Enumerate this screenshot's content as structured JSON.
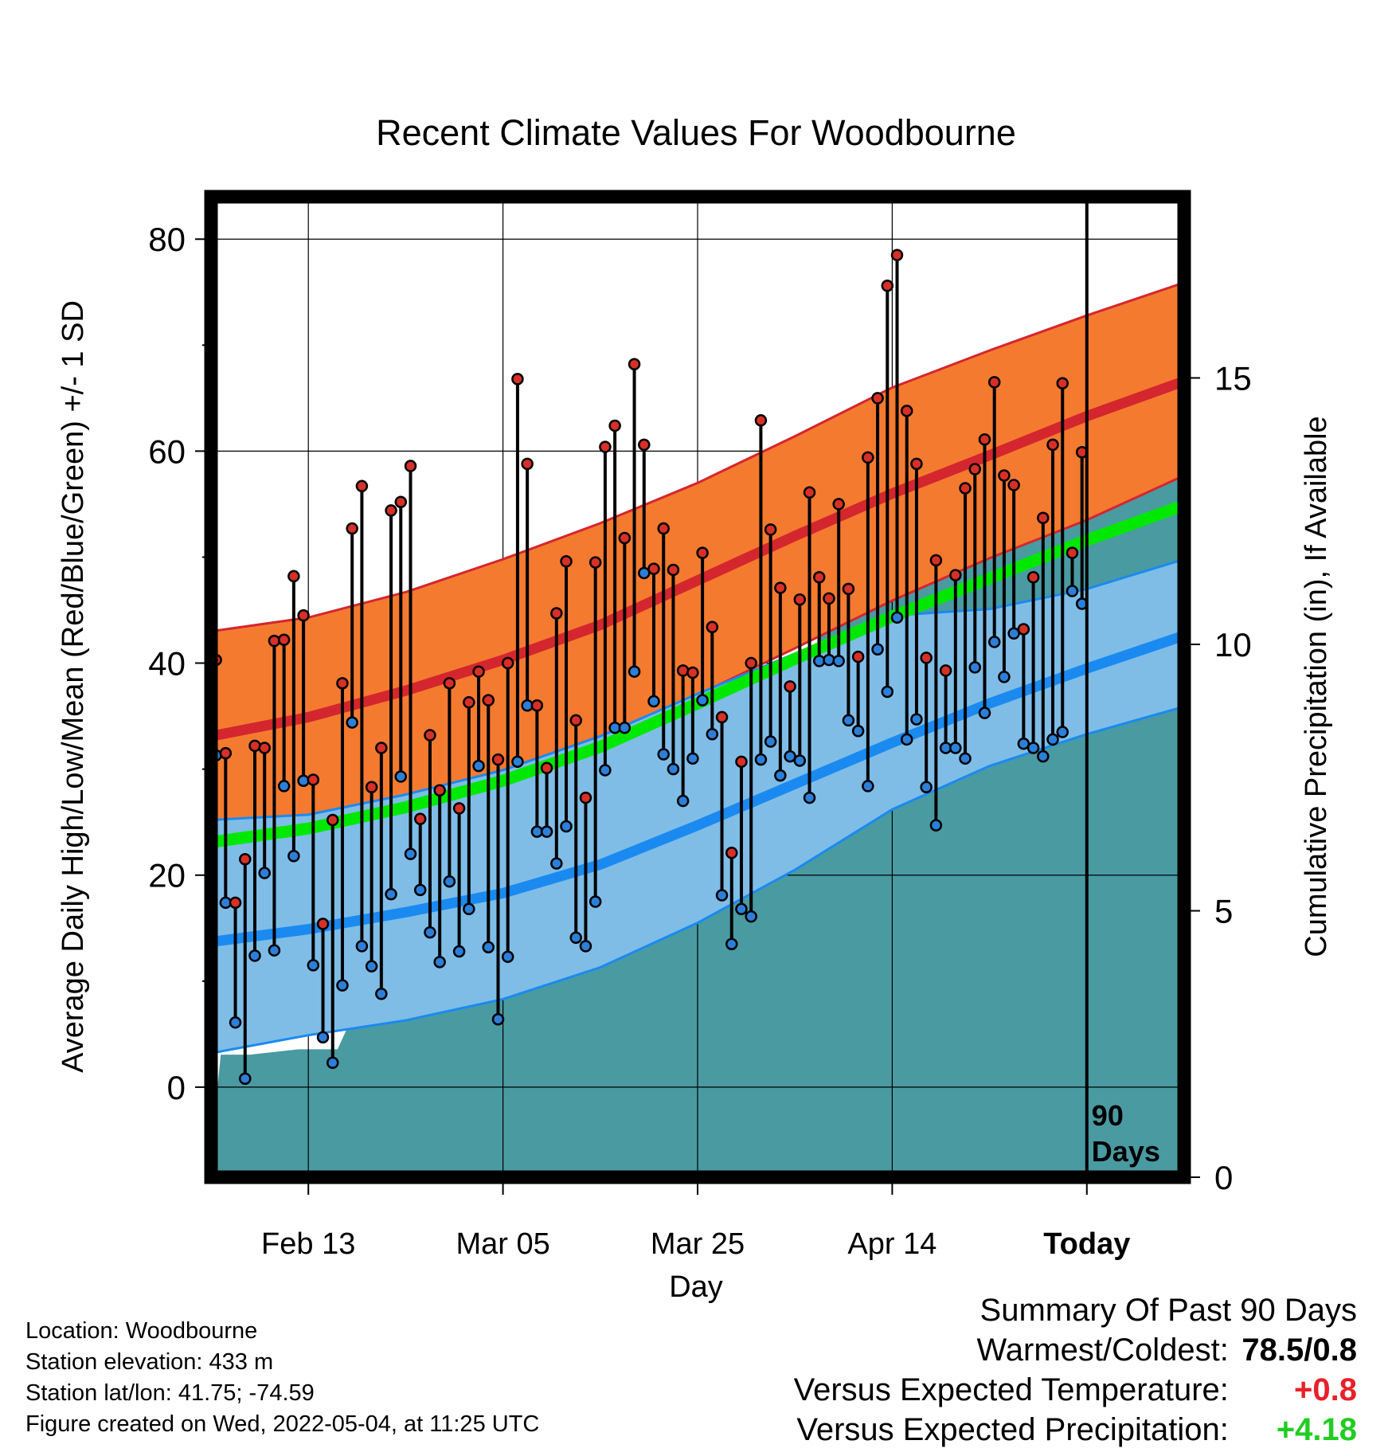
{
  "chart_data": {
    "type": "line",
    "title": "Recent Climate Values For Woodbourne",
    "xlabel": "Day",
    "ylabel": "Average Daily High/Low/Mean (Red/Blue/Green) +/- 1 SD",
    "y2label": "Cumulative Precipitation (in), If Available",
    "ylim": [
      -8.5,
      84
    ],
    "y2lim": [
      0,
      18.4
    ],
    "yticks": [
      "0",
      "20",
      "40",
      "60",
      "80"
    ],
    "y2ticks": [
      "0",
      "5",
      "10",
      "15"
    ],
    "x_day_range": [
      0,
      100
    ],
    "xticks": [
      {
        "day": 10,
        "label": "Feb 13"
      },
      {
        "day": 30,
        "label": "Mar 05"
      },
      {
        "day": 50,
        "label": "Mar 25"
      },
      {
        "day": 70,
        "label": "Apr 14"
      },
      {
        "day": 90,
        "label": "Today"
      }
    ],
    "today_line_label": "90 Days",
    "grid": true,
    "normal_high": {
      "x": [
        0,
        10,
        20,
        30,
        40,
        50,
        60,
        70,
        80,
        90,
        100
      ],
      "mean": [
        33.1,
        34.9,
        37.4,
        40.3,
        43.6,
        47.8,
        52.0,
        56.0,
        59.6,
        63.3,
        66.6
      ],
      "upper": [
        43.0,
        44.3,
        46.7,
        49.8,
        53.2,
        57.0,
        61.4,
        66.0,
        69.5,
        72.8,
        75.9
      ],
      "lower": [
        24.8,
        25.3,
        27.4,
        29.9,
        33.1,
        37.0,
        41.4,
        45.9,
        49.9,
        53.5,
        57.7
      ]
    },
    "normal_mean": {
      "x": [
        0,
        10,
        20,
        30,
        40,
        50,
        60,
        70,
        80,
        90,
        100
      ],
      "values": [
        23.1,
        24.4,
        26.4,
        28.9,
        32.1,
        36.2,
        40.4,
        44.4,
        48.0,
        51.6,
        54.9
      ]
    },
    "normal_low": {
      "x": [
        0,
        10,
        20,
        30,
        40,
        50,
        60,
        70,
        80,
        90,
        100
      ],
      "mean": [
        13.7,
        14.9,
        16.5,
        18.3,
        21.0,
        24.7,
        28.6,
        32.5,
        36.2,
        39.5,
        42.6
      ],
      "upper": [
        25.2,
        25.7,
        27.6,
        29.9,
        33.1,
        37.1,
        40.9,
        44.5,
        45.1,
        47.0,
        49.8
      ],
      "lower": [
        3.2,
        4.9,
        6.3,
        8.3,
        11.3,
        15.5,
        20.5,
        26.2,
        30.3,
        33.3,
        35.9
      ]
    },
    "daily": {
      "highs": [
        40.3,
        31.5,
        17.4,
        21.5,
        32.2,
        32.0,
        42.1,
        42.2,
        48.2,
        44.5,
        29.0,
        15.4,
        25.2,
        38.1,
        52.7,
        56.7,
        28.3,
        32.0,
        54.4,
        55.2,
        58.6,
        25.3,
        33.2,
        28.0,
        38.1,
        26.3,
        36.3,
        39.2,
        36.5,
        30.9,
        40.0,
        66.8,
        58.8,
        36.0,
        30.1,
        44.7,
        49.6,
        34.6,
        27.3,
        49.5,
        60.4,
        62.4,
        51.8,
        68.2,
        60.6,
        48.9,
        52.7,
        48.8,
        39.3,
        39.1,
        50.4,
        43.4,
        34.9,
        22.1,
        30.7,
        40.0,
        62.9,
        52.6,
        47.1,
        37.8,
        46.0,
        56.1,
        48.1,
        46.1,
        55.0,
        47.0,
        40.6,
        59.4,
        65.0,
        75.6,
        78.5,
        63.8,
        58.8,
        40.5,
        49.7,
        39.3,
        48.3,
        56.5,
        58.3,
        61.1,
        66.5,
        57.7,
        56.8,
        43.2,
        48.1,
        53.7,
        60.6,
        66.4,
        50.4,
        59.9
      ],
      "lows": [
        31.3,
        17.4,
        6.1,
        0.8,
        12.4,
        20.2,
        12.9,
        28.4,
        21.8,
        28.9,
        11.5,
        4.7,
        2.3,
        9.6,
        34.4,
        13.3,
        11.4,
        8.8,
        18.2,
        29.3,
        22.0,
        18.6,
        14.6,
        11.8,
        19.4,
        12.8,
        16.8,
        30.3,
        13.2,
        6.4,
        12.3,
        30.7,
        36.0,
        24.1,
        24.1,
        21.1,
        24.6,
        14.1,
        13.3,
        17.5,
        29.9,
        33.9,
        33.9,
        39.2,
        48.5,
        36.4,
        31.4,
        30.0,
        27.0,
        31.0,
        36.5,
        33.3,
        18.1,
        13.5,
        16.8,
        16.1,
        30.9,
        32.6,
        29.4,
        31.2,
        30.8,
        27.3,
        40.2,
        40.3,
        40.2,
        34.6,
        33.6,
        28.4,
        41.3,
        37.3,
        44.3,
        32.8,
        34.7,
        28.3,
        24.7,
        32.0,
        32.0,
        31.0,
        39.6,
        35.3,
        42.0,
        38.7,
        42.8,
        32.4,
        32.0,
        31.2,
        32.8,
        33.5,
        46.8,
        45.6
      ]
    },
    "precip_cumulative": {
      "x": [
        0,
        1,
        4,
        9,
        13,
        14,
        15,
        18,
        19,
        21,
        22,
        23,
        26,
        29,
        31,
        32,
        34,
        35,
        37,
        38,
        42,
        43,
        44,
        47,
        48,
        49,
        50,
        51,
        53,
        55,
        56,
        57,
        58,
        59,
        61,
        62,
        63,
        64,
        66,
        68,
        70,
        71,
        72,
        73,
        74,
        75,
        78,
        79,
        80,
        82,
        83,
        85,
        86,
        88,
        89,
        90,
        100
      ],
      "values": [
        0.5,
        2.3,
        2.3,
        2.4,
        2.4,
        2.8,
        3.1,
        3.1,
        3.6,
        3.6,
        4.1,
        4.5,
        4.6,
        4.7,
        4.7,
        5.0,
        5.3,
        5.3,
        6.0,
        6.1,
        6.3,
        7.0,
        7.0,
        7.2,
        7.5,
        7.5,
        7.7,
        7.8,
        7.8,
        7.8,
        8.6,
        8.8,
        8.8,
        9.1,
        9.1,
        9.2,
        12.2,
        12.3,
        12.4,
        12.5,
        12.5,
        12.9,
        13.3,
        14.1,
        14.3,
        14.3,
        14.4,
        14.6,
        14.6,
        14.8,
        14.8,
        14.9,
        14.9,
        15.2,
        15.2,
        15.3,
        15.3
      ]
    },
    "colors": {
      "high_band": "#f47a30",
      "high_line": "#d4262e",
      "low_band": "#7fbde7",
      "low_line": "#1a8af0",
      "mean_line": "#00e800",
      "precip": "#4a9aa2",
      "high_marker": "#d73027",
      "low_marker": "#2c7fd8"
    }
  },
  "info": {
    "location": "Location: Woodbourne",
    "elevation": "Station elevation: 433 m",
    "latlon": "Station lat/lon: 41.75; -74.59",
    "created": "Figure created on Wed, 2022-05-04, at 11:25 UTC"
  },
  "summary": {
    "heading": "Summary Of Past 90 Days",
    "warm_cold_label": "Warmest/Coldest:",
    "warm_cold_value": "78.5/0.8",
    "temp_label": "Versus Expected Temperature:",
    "temp_value": "+0.8",
    "temp_color": "#e8202a",
    "precip_label": "Versus Expected Precipitation:",
    "precip_value": "+4.18",
    "precip_color": "#22cc22"
  }
}
